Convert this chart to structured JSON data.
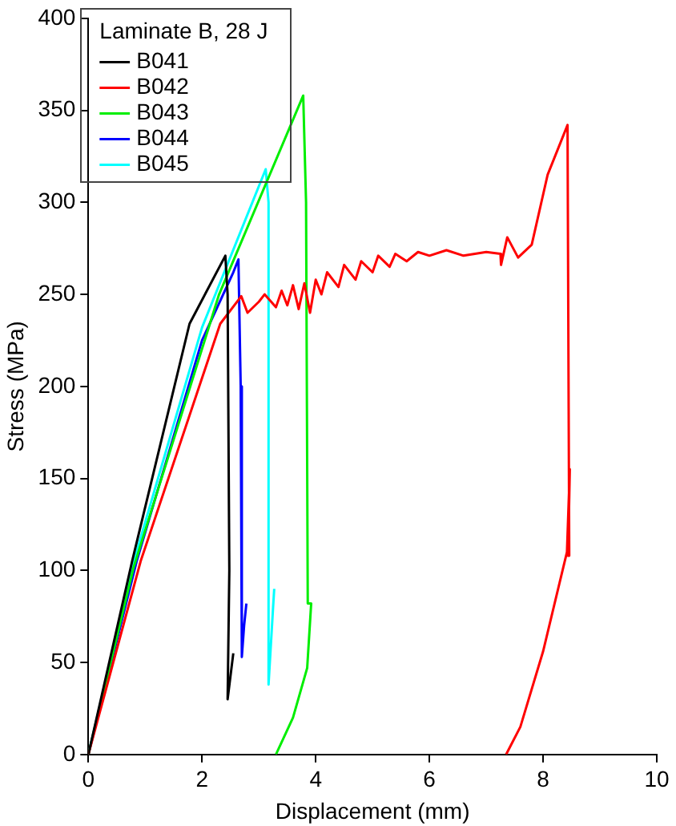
{
  "chart_data": {
    "type": "line",
    "xlabel": "Displacement (mm)",
    "ylabel": "Stress (MPa)",
    "legend_title": "Laminate B, 28 J",
    "legend": "top left",
    "grid": false,
    "marker": "none",
    "line_style": "solid",
    "xlim": [
      0,
      10
    ],
    "xticks": [
      0,
      2,
      4,
      6,
      8,
      10
    ],
    "ylim": [
      0,
      400
    ],
    "yticks": [
      0,
      50,
      100,
      150,
      200,
      250,
      300,
      350,
      400
    ],
    "series": [
      {
        "name": "B041",
        "color": "#000000",
        "x": [
          0,
          0.77,
          1.78,
          2.41,
          2.45,
          2.48,
          2.45,
          2.55
        ],
        "values": [
          0,
          105,
          234,
          271,
          250,
          100,
          30,
          55
        ]
      },
      {
        "name": "B042",
        "color": "#ff0000",
        "x": [
          0,
          0.92,
          2.32,
          2.69,
          2.8,
          3.0,
          3.1,
          3.3,
          3.4,
          3.5,
          3.6,
          3.7,
          3.8,
          3.9,
          4.0,
          4.1,
          4.2,
          4.4,
          4.5,
          4.7,
          4.8,
          5.0,
          5.1,
          5.3,
          5.4,
          5.6,
          5.8,
          6.0,
          6.3,
          6.6,
          7.0,
          7.25,
          7.26,
          7.37,
          7.56,
          7.8,
          8.08,
          8.43,
          8.46,
          8.44,
          8.47,
          8.42,
          8.0,
          7.6,
          7.35
        ],
        "values": [
          0,
          105,
          234,
          249,
          240,
          246,
          250,
          243,
          252,
          244,
          255,
          242,
          256,
          240,
          258,
          250,
          262,
          254,
          266,
          258,
          268,
          262,
          271,
          265,
          272,
          268,
          273,
          271,
          274,
          271,
          273,
          272,
          266,
          281,
          270,
          277,
          315,
          342,
          108,
          108,
          155,
          110,
          56,
          15,
          0
        ]
      },
      {
        "name": "B043",
        "color": "#00ee00",
        "x": [
          0,
          0.8,
          2.3,
          3.78,
          3.83,
          3.86,
          3.92,
          3.85,
          3.6,
          3.3
        ],
        "values": [
          0,
          102,
          250,
          358,
          300,
          82,
          82,
          47,
          20,
          0
        ]
      },
      {
        "name": "B044",
        "color": "#0000ff",
        "x": [
          0,
          0.85,
          2.0,
          2.55,
          2.64,
          2.68,
          2.7,
          2.74,
          2.78
        ],
        "values": [
          0,
          105,
          225,
          262,
          269,
          200,
          53,
          70,
          82
        ]
      },
      {
        "name": "B045",
        "color": "#00ffff",
        "x": [
          0,
          0.8,
          2.0,
          3.12,
          3.17,
          3.17,
          3.25,
          3.27
        ],
        "values": [
          0,
          105,
          232,
          318,
          300,
          38,
          80,
          90
        ]
      }
    ]
  }
}
